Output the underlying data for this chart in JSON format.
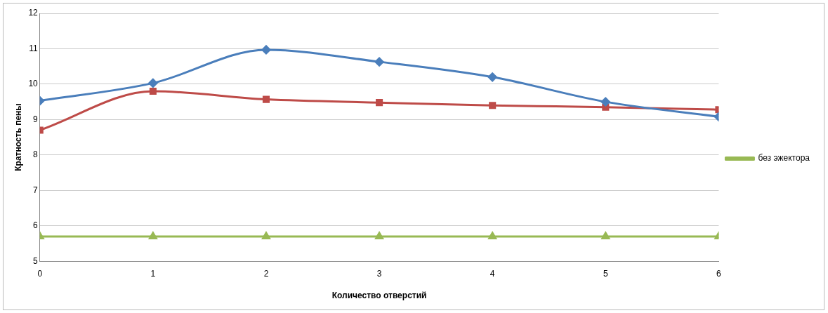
{
  "chart_data": {
    "type": "line",
    "xlabel": "Количество отверстий",
    "ylabel": "Кратность пены",
    "x": [
      0,
      1,
      2,
      3,
      4,
      5,
      6
    ],
    "xlim": [
      0,
      6
    ],
    "xticks": [
      0,
      1,
      2,
      3,
      4,
      5,
      6
    ],
    "ylim": [
      5,
      12
    ],
    "yticks": [
      5,
      6,
      7,
      8,
      9,
      10,
      11,
      12
    ],
    "grid": "y",
    "legend": "right",
    "series": [
      {
        "color": "#4a7ebb",
        "marker": "diamond",
        "values": [
          9.53,
          10.03,
          10.97,
          10.63,
          10.2,
          9.5,
          9.08
        ]
      },
      {
        "color": "#be4b48",
        "marker": "square",
        "values": [
          8.7,
          9.8,
          9.57,
          9.48,
          9.4,
          9.35,
          9.28
        ]
      },
      {
        "name": "без эжектора",
        "color": "#98b954",
        "marker": "triangle",
        "values": [
          5.7,
          5.7,
          5.7,
          5.7,
          5.7,
          5.7,
          5.7
        ]
      }
    ]
  }
}
